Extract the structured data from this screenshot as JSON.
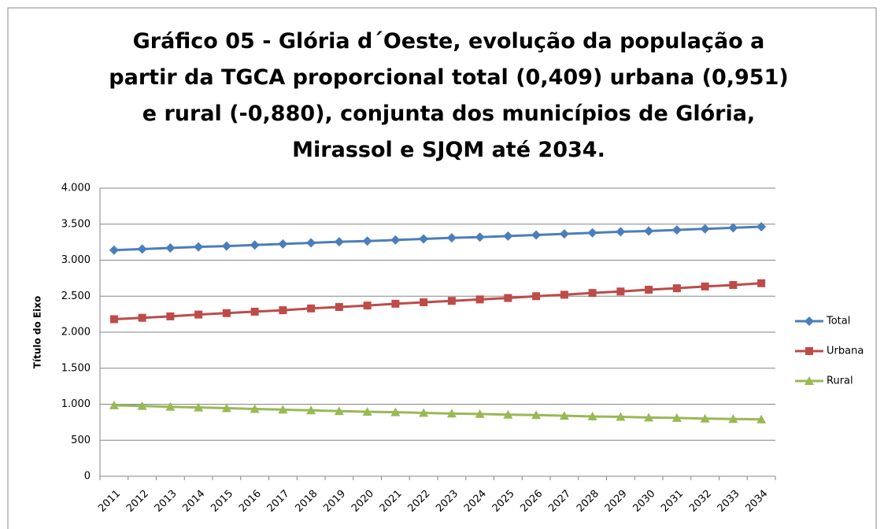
{
  "chart_data": {
    "type": "line",
    "title": "Gráfico 05 - Glória d´Oeste, evolução da população a partir da TGCA proporcional total (0,409)  urbana (0,951) e rural (-0,880), conjunta dos municípios de Glória, Mirassol e SJQM até 2034.",
    "ylabel": "Título do Eixo",
    "categories": [
      "2011",
      "2012",
      "2013",
      "2014",
      "2015",
      "2016",
      "2017",
      "2018",
      "2019",
      "2020",
      "2021",
      "2022",
      "2023",
      "2024",
      "2025",
      "2026",
      "2027",
      "2028",
      "2029",
      "2030",
      "2031",
      "2032",
      "2033",
      "2034"
    ],
    "series": [
      {
        "name": "Total",
        "color": "#4a7ebb",
        "marker": "diamond",
        "values": [
          3140,
          3155,
          3170,
          3185,
          3195,
          3210,
          3225,
          3240,
          3255,
          3265,
          3280,
          3295,
          3310,
          3320,
          3335,
          3350,
          3365,
          3380,
          3395,
          3405,
          3420,
          3435,
          3450,
          3465
        ]
      },
      {
        "name": "Urbana",
        "color": "#be4b48",
        "marker": "square",
        "values": [
          2180,
          2200,
          2220,
          2245,
          2265,
          2285,
          2305,
          2330,
          2350,
          2370,
          2395,
          2415,
          2435,
          2455,
          2475,
          2500,
          2520,
          2545,
          2565,
          2590,
          2610,
          2635,
          2655,
          2680
        ]
      },
      {
        "name": "Rural",
        "color": "#98b954",
        "marker": "triangle",
        "values": [
          985,
          975,
          965,
          955,
          945,
          935,
          925,
          915,
          905,
          895,
          890,
          880,
          870,
          865,
          855,
          850,
          840,
          830,
          825,
          815,
          810,
          800,
          795,
          790
        ]
      }
    ],
    "ylim": [
      0,
      4000
    ],
    "yticks": [
      0,
      500,
      {
        "value": 1000,
        "label": "1.000"
      },
      {
        "value": 1500,
        "label": "1.500"
      },
      {
        "value": 2000,
        "label": "2.000"
      },
      {
        "value": 2500,
        "label": "2.500"
      },
      {
        "value": 3000,
        "label": "3.000"
      },
      {
        "value": 3500,
        "label": "3.500"
      },
      {
        "value": 4000,
        "label": "4.000"
      }
    ],
    "grid": true,
    "legend": "right"
  }
}
